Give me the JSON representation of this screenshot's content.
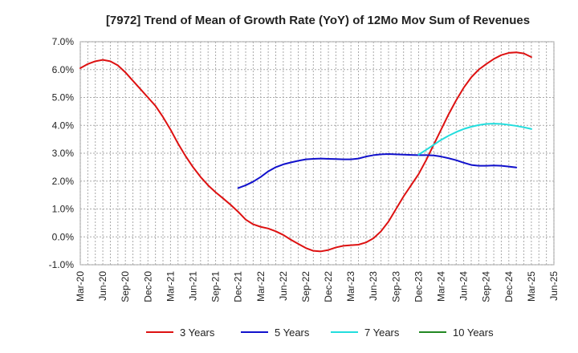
{
  "chart_data": {
    "type": "line",
    "title": "[7972]  Trend of Mean of Growth Rate (YoY) of 12Mo Mov Sum of Revenues",
    "xlabel": "",
    "ylabel": "",
    "ylim": [
      -1.0,
      7.0
    ],
    "yticks": [
      -1.0,
      0.0,
      1.0,
      2.0,
      3.0,
      4.0,
      5.0,
      6.0,
      7.0
    ],
    "ytick_labels": [
      "-1.0%",
      "0.0%",
      "1.0%",
      "2.0%",
      "3.0%",
      "4.0%",
      "5.0%",
      "6.0%",
      "7.0%"
    ],
    "x_tick_labels": [
      "Mar-20",
      "Jun-20",
      "Sep-20",
      "Dec-20",
      "Mar-21",
      "Jun-21",
      "Sep-21",
      "Dec-21",
      "Mar-22",
      "Jun-22",
      "Sep-22",
      "Dec-22",
      "Mar-23",
      "Jun-23",
      "Sep-23",
      "Dec-23",
      "Mar-24",
      "Jun-24",
      "Sep-24",
      "Dec-24",
      "Mar-25",
      "Jun-25"
    ],
    "x_start": "Mar-20",
    "x_months": 63,
    "grid": true,
    "legend_position": "bottom",
    "series": [
      {
        "name": "3 Years",
        "color": "#dd1111",
        "start_month": 0,
        "values": [
          6.05,
          6.2,
          6.3,
          6.35,
          6.3,
          6.15,
          5.9,
          5.6,
          5.3,
          5.0,
          4.7,
          4.3,
          3.85,
          3.35,
          2.9,
          2.5,
          2.15,
          1.85,
          1.6,
          1.38,
          1.15,
          0.9,
          0.62,
          0.45,
          0.36,
          0.3,
          0.2,
          0.07,
          -0.1,
          -0.25,
          -0.4,
          -0.5,
          -0.52,
          -0.47,
          -0.38,
          -0.32,
          -0.3,
          -0.28,
          -0.2,
          -0.05,
          0.2,
          0.55,
          1.0,
          1.45,
          1.85,
          2.25,
          2.75,
          3.3,
          3.85,
          4.4,
          4.9,
          5.35,
          5.72,
          6.0,
          6.2,
          6.38,
          6.52,
          6.6,
          6.62,
          6.58,
          6.45
        ]
      },
      {
        "name": "5 Years",
        "color": "#1111cc",
        "start_month": 21,
        "values": [
          1.75,
          1.85,
          1.98,
          2.15,
          2.35,
          2.5,
          2.6,
          2.67,
          2.73,
          2.78,
          2.8,
          2.81,
          2.8,
          2.79,
          2.78,
          2.78,
          2.81,
          2.88,
          2.93,
          2.96,
          2.97,
          2.96,
          2.95,
          2.94,
          2.93,
          2.93,
          2.92,
          2.88,
          2.82,
          2.75,
          2.66,
          2.58,
          2.55,
          2.55,
          2.56,
          2.55,
          2.52,
          2.49
        ]
      },
      {
        "name": "7 Years",
        "color": "#22dddd",
        "start_month": 45,
        "values": [
          2.95,
          3.12,
          3.3,
          3.48,
          3.63,
          3.76,
          3.87,
          3.95,
          4.01,
          4.05,
          4.06,
          4.05,
          4.02,
          3.98,
          3.93,
          3.87
        ]
      },
      {
        "name": "10 Years",
        "color": "#228822",
        "start_month": 0,
        "values": []
      }
    ]
  }
}
